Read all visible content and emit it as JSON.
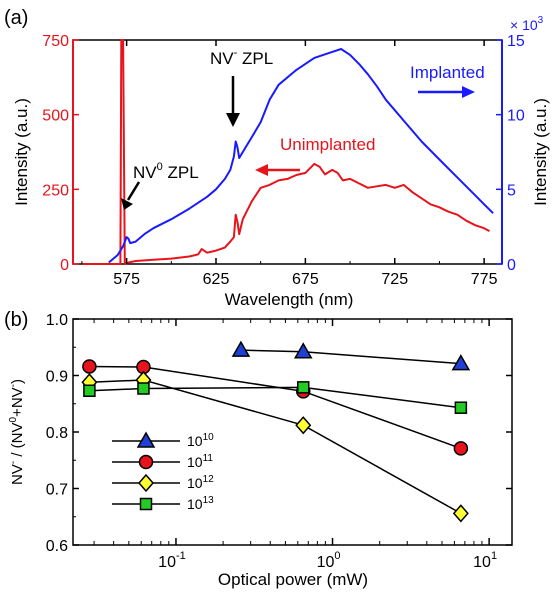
{
  "colors": {
    "red": "#e8141b",
    "blue": "#1a1aff",
    "tri_fill": "#1f3fd6",
    "circ_fill": "#e8141b",
    "diam_fill": "#ffff33",
    "sq_fill": "#22cc22",
    "black": "#000000"
  },
  "chart_data": [
    {
      "panel_label": "(a)",
      "type": "line",
      "xlabel": "Wavelength (nm)",
      "ylabel_left": "Intensity (a.u.)",
      "ylabel_right": "Intensity (a.u.)",
      "right_axis_multiplier": "× 10",
      "right_axis_multiplier_exp": "3",
      "xlim": [
        545,
        785
      ],
      "ylim_left": [
        0,
        750
      ],
      "ylim_right": [
        0,
        15
      ],
      "xticks": [
        575,
        625,
        675,
        725,
        775
      ],
      "yticks_left": [
        0,
        250,
        500,
        750
      ],
      "yticks_right": [
        0,
        5,
        10,
        15
      ],
      "grid": false,
      "annotations": [
        {
          "base": "NV",
          "sup": "-",
          "rest": " ZPL"
        },
        {
          "base": "NV",
          "sup": "0",
          "rest": " ZPL"
        },
        {
          "text": "Implanted"
        },
        {
          "text": "Unimplanted"
        }
      ],
      "series": [
        {
          "name": "Unimplanted",
          "axis": "left",
          "color": "#e8141b",
          "x": [
            550,
            565,
            570,
            571.5,
            572,
            573,
            574,
            576,
            580,
            590,
            600,
            610,
            615,
            617,
            620,
            625,
            630,
            633,
            635,
            636,
            637,
            638,
            640,
            645,
            650,
            655,
            660,
            665,
            670,
            675,
            680,
            683,
            686,
            690,
            693,
            696,
            700,
            705,
            710,
            715,
            720,
            725,
            730,
            735,
            740,
            745,
            750,
            755,
            760,
            765,
            770,
            775,
            778
          ],
          "y": [
            0,
            0,
            0,
            0,
            750,
            750,
            0,
            5,
            10,
            14,
            18,
            25,
            32,
            50,
            38,
            45,
            55,
            75,
            90,
            165,
            140,
            100,
            150,
            210,
            255,
            265,
            280,
            285,
            298,
            305,
            335,
            325,
            300,
            315,
            305,
            280,
            285,
            270,
            255,
            260,
            265,
            255,
            265,
            240,
            220,
            200,
            190,
            175,
            165,
            145,
            130,
            120,
            110
          ]
        },
        {
          "name": "Implanted",
          "axis": "right",
          "color": "#1a1aff",
          "x": [
            565,
            570,
            573,
            575,
            576,
            577,
            580,
            585,
            590,
            600,
            610,
            620,
            625,
            630,
            633,
            635,
            636,
            637,
            638,
            640,
            645,
            650,
            655,
            660,
            670,
            680,
            690,
            695,
            700,
            705,
            710,
            715,
            720,
            725,
            730,
            740,
            750,
            760,
            770,
            775,
            780
          ],
          "y": [
            0.1,
            0.6,
            1.2,
            1.8,
            1.7,
            1.4,
            1.5,
            2.0,
            2.4,
            3.0,
            3.7,
            4.5,
            5.0,
            5.7,
            6.3,
            7.2,
            8.2,
            7.8,
            7.1,
            7.5,
            8.5,
            9.5,
            11.0,
            12.0,
            13.0,
            13.8,
            14.2,
            14.4,
            14.0,
            13.4,
            12.7,
            11.9,
            11.0,
            10.3,
            9.6,
            8.2,
            7.0,
            5.8,
            4.6,
            4.0,
            3.4
          ]
        }
      ]
    },
    {
      "panel_label": "(b)",
      "type": "scatter",
      "xscale": "log",
      "xlabel": "Optical power (mW)",
      "ylabel_parts": {
        "a": "NV",
        "a_sup": "-",
        "b": " / (NV",
        "b_sup": "0",
        "c": "+NV",
        "c_sup": "-",
        "d": ")"
      },
      "xlim": [
        0.022,
        14
      ],
      "ylim": [
        0.6,
        1.0
      ],
      "xticks": [
        {
          "value": 0.1,
          "base": "10",
          "exp": "-1"
        },
        {
          "value": 1,
          "base": "10",
          "exp": "0"
        },
        {
          "value": 10,
          "base": "10",
          "exp": "1"
        }
      ],
      "yticks": [
        "0.6",
        "0.7",
        "0.8",
        "0.9",
        "1.0"
      ],
      "legend_placement": "lower-left",
      "grid": false,
      "series": [
        {
          "name_base": "10",
          "name_exp": "10",
          "marker": "triangle",
          "fill": "#1f3fd6",
          "x": [
            0.26,
            0.65,
            6.6
          ],
          "y": [
            0.945,
            0.942,
            0.921
          ]
        },
        {
          "name_base": "10",
          "name_exp": "11",
          "marker": "circle",
          "fill": "#e8141b",
          "x": [
            0.028,
            0.062,
            0.65,
            6.6
          ],
          "y": [
            0.916,
            0.915,
            0.872,
            0.771
          ]
        },
        {
          "name_base": "10",
          "name_exp": "12",
          "marker": "diamond",
          "fill": "#ffff33",
          "x": [
            0.028,
            0.062,
            0.65,
            6.6
          ],
          "y": [
            0.888,
            0.892,
            0.812,
            0.656
          ]
        },
        {
          "name_base": "10",
          "name_exp": "13",
          "marker": "square",
          "fill": "#22cc22",
          "x": [
            0.028,
            0.062,
            0.65,
            6.6
          ],
          "y": [
            0.873,
            0.877,
            0.879,
            0.843
          ]
        }
      ]
    }
  ]
}
